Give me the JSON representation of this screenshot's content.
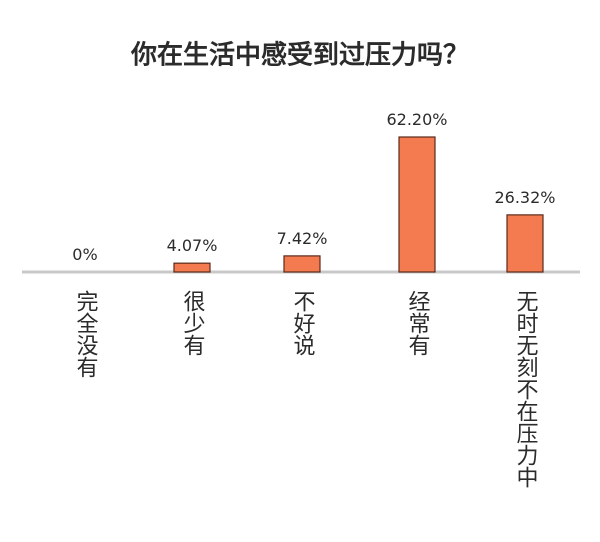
{
  "chart_data": {
    "type": "bar",
    "title": "你在生活中感受到过压力吗？",
    "categories": [
      "完全没有",
      "很少有",
      "不好说",
      "经常有",
      "无时无刻不在压力中"
    ],
    "values": [
      0,
      4.07,
      7.42,
      62.2,
      26.32
    ],
    "value_labels": [
      "0%",
      "4.07%",
      "7.42%",
      "62.20%",
      "26.32%"
    ],
    "color": "#f47a4f"
  }
}
